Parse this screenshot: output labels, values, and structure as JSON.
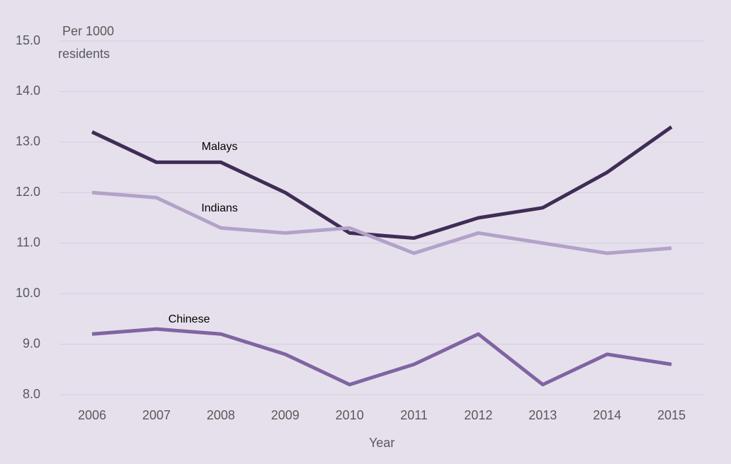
{
  "chart_data": {
    "type": "line",
    "y_label": [
      "Per 1000",
      "residents"
    ],
    "x_label": "Year",
    "categories": [
      "2006",
      "2007",
      "2008",
      "2009",
      "2010",
      "2011",
      "2012",
      "2013",
      "2014",
      "2015"
    ],
    "series": [
      {
        "name": "Malays",
        "color": "#3f2d56",
        "values": [
          13.2,
          12.6,
          12.6,
          12.0,
          11.2,
          11.1,
          11.5,
          11.7,
          12.4,
          13.3
        ]
      },
      {
        "name": "Indians",
        "color": "#b3a2c8",
        "values": [
          12.0,
          11.9,
          11.3,
          11.2,
          11.3,
          10.8,
          11.2,
          11.0,
          10.8,
          10.9
        ]
      },
      {
        "name": "Chinese",
        "color": "#8064a2",
        "values": [
          9.2,
          9.3,
          9.2,
          8.8,
          8.2,
          8.6,
          9.2,
          8.2,
          8.8,
          8.6
        ]
      }
    ],
    "ylim": [
      8,
      15
    ],
    "yticks": [
      {
        "value": 8,
        "label": "8.0"
      },
      {
        "value": 9,
        "label": "9.0"
      },
      {
        "value": 10,
        "label": "10.0"
      },
      {
        "value": 11,
        "label": "11.0"
      },
      {
        "value": 12,
        "label": "12.0"
      },
      {
        "value": 13,
        "label": "13.0"
      },
      {
        "value": 14,
        "label": "14.0"
      },
      {
        "value": 15,
        "label": "15.0"
      }
    ],
    "grid": true
  }
}
